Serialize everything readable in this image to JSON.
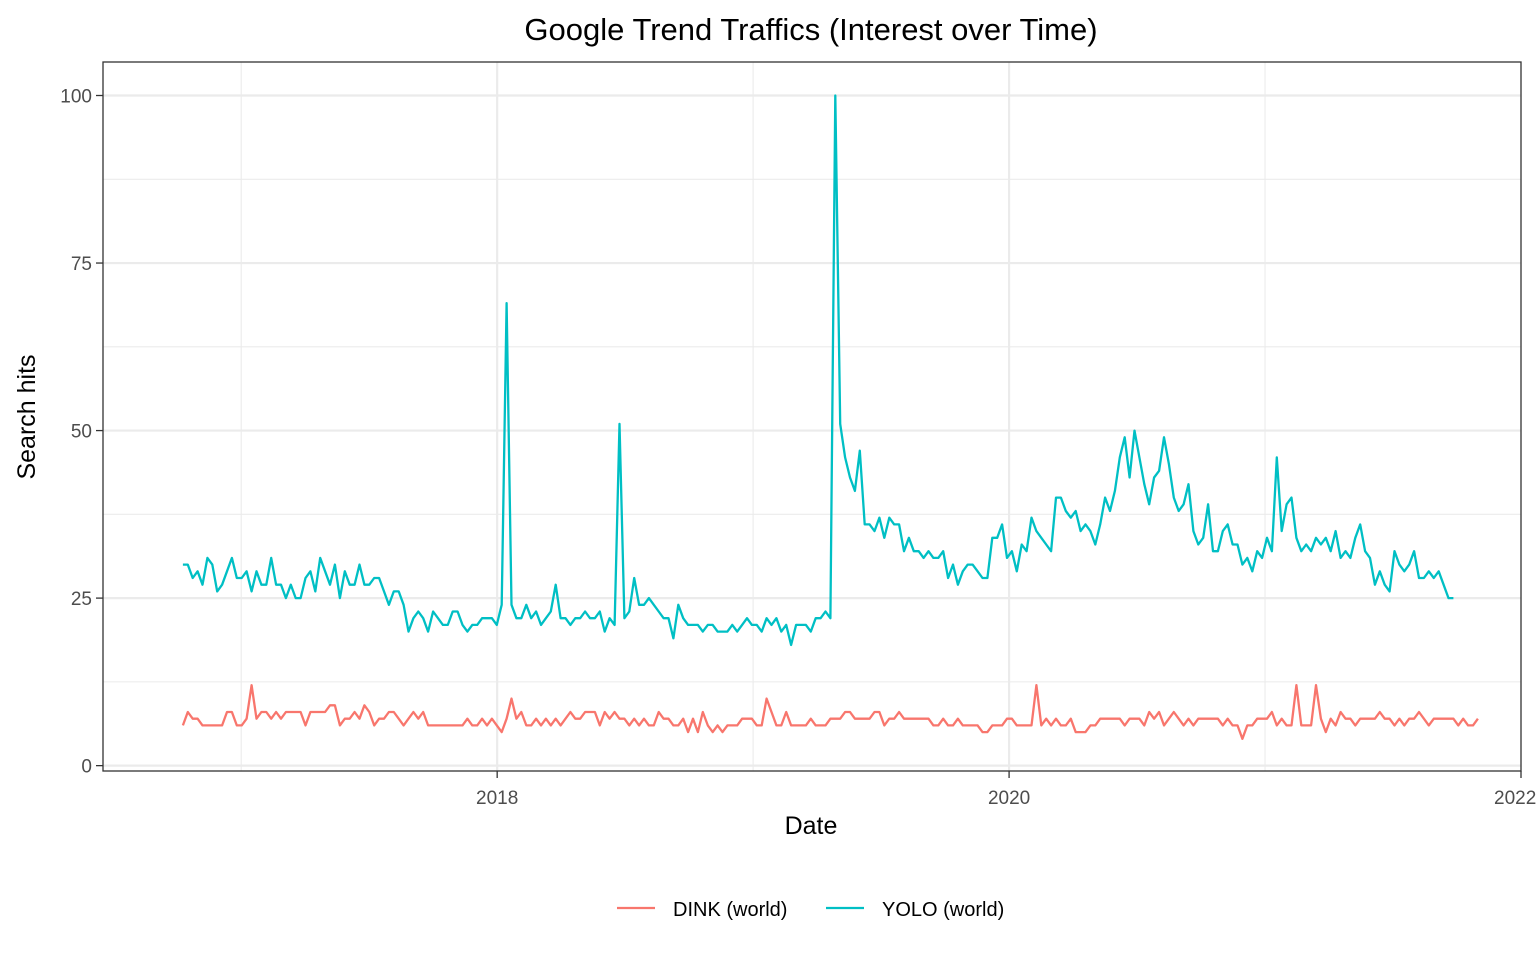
{
  "chart_data": {
    "type": "line",
    "title": "Google Trend Traffics (Interest over Time)",
    "xlabel": "Date",
    "ylabel": "Search hits",
    "x_ticks": [
      "2018",
      "2020",
      "2022"
    ],
    "y_ticks": [
      "0",
      "25",
      "50",
      "75",
      "100"
    ],
    "xlim": [
      2016.46,
      2022.0
    ],
    "ylim": [
      -0.8,
      105
    ],
    "grid": true,
    "legend_position": "bottom",
    "x_start": "2016-10-09",
    "x_step_weeks": 1,
    "series": [
      {
        "name": "DINK (world)",
        "color": "#F8766D",
        "values": [
          6,
          8,
          7,
          7,
          6,
          6,
          6,
          6,
          6,
          8,
          8,
          6,
          6,
          7,
          12,
          7,
          8,
          8,
          7,
          8,
          7,
          8,
          8,
          8,
          8,
          6,
          8,
          8,
          8,
          8,
          9,
          9,
          6,
          7,
          7,
          8,
          7,
          9,
          8,
          6,
          7,
          7,
          8,
          8,
          7,
          6,
          7,
          8,
          7,
          8,
          6,
          6,
          6,
          6,
          6,
          6,
          6,
          6,
          7,
          6,
          6,
          7,
          6,
          7,
          6,
          5,
          7,
          10,
          7,
          8,
          6,
          6,
          7,
          6,
          7,
          6,
          7,
          6,
          7,
          8,
          7,
          7,
          8,
          8,
          8,
          6,
          8,
          7,
          8,
          7,
          7,
          6,
          7,
          6,
          7,
          6,
          6,
          8,
          7,
          7,
          6,
          6,
          7,
          5,
          7,
          5,
          8,
          6,
          5,
          6,
          5,
          6,
          6,
          6,
          7,
          7,
          7,
          6,
          6,
          10,
          8,
          6,
          6,
          8,
          6,
          6,
          6,
          6,
          7,
          6,
          6,
          6,
          7,
          7,
          7,
          8,
          8,
          7,
          7,
          7,
          7,
          8,
          8,
          6,
          7,
          7,
          8,
          7,
          7,
          7,
          7,
          7,
          7,
          6,
          6,
          7,
          6,
          6,
          7,
          6,
          6,
          6,
          6,
          5,
          5,
          6,
          6,
          6,
          7,
          7,
          6,
          6,
          6,
          6,
          12,
          6,
          7,
          6,
          7,
          6,
          6,
          7,
          5,
          5,
          5,
          6,
          6,
          7,
          7,
          7,
          7,
          7,
          6,
          7,
          7,
          7,
          6,
          8,
          7,
          8,
          6,
          7,
          8,
          7,
          6,
          7,
          6,
          7,
          7,
          7,
          7,
          7,
          6,
          7,
          6,
          6,
          4,
          6,
          6,
          7,
          7,
          7,
          8,
          6,
          7,
          6,
          6,
          12,
          6,
          6,
          6,
          12,
          7,
          5,
          7,
          6,
          8,
          7,
          7,
          6,
          7,
          7,
          7,
          7,
          8,
          7,
          7,
          6,
          7,
          6,
          7,
          7,
          8,
          7,
          6,
          7,
          7,
          7,
          7,
          7,
          6,
          7,
          6,
          6,
          7
        ]
      },
      {
        "name": "YOLO (world)",
        "color": "#00BFC4",
        "values": [
          30,
          30,
          28,
          29,
          27,
          31,
          30,
          26,
          27,
          29,
          31,
          28,
          28,
          29,
          26,
          29,
          27,
          27,
          31,
          27,
          27,
          25,
          27,
          25,
          25,
          28,
          29,
          26,
          31,
          29,
          27,
          30,
          25,
          29,
          27,
          27,
          30,
          27,
          27,
          28,
          28,
          26,
          24,
          26,
          26,
          24,
          20,
          22,
          23,
          22,
          20,
          23,
          22,
          21,
          21,
          23,
          23,
          21,
          20,
          21,
          21,
          22,
          22,
          22,
          21,
          24,
          69,
          24,
          22,
          22,
          24,
          22,
          23,
          21,
          22,
          23,
          27,
          22,
          22,
          21,
          22,
          22,
          23,
          22,
          22,
          23,
          20,
          22,
          21,
          51,
          22,
          23,
          28,
          24,
          24,
          25,
          24,
          23,
          22,
          22,
          19,
          24,
          22,
          21,
          21,
          21,
          20,
          21,
          21,
          20,
          20,
          20,
          21,
          20,
          21,
          22,
          21,
          21,
          20,
          22,
          21,
          22,
          20,
          21,
          18,
          21,
          21,
          21,
          20,
          22,
          22,
          23,
          22,
          100,
          51,
          46,
          43,
          41,
          47,
          36,
          36,
          35,
          37,
          34,
          37,
          36,
          36,
          32,
          34,
          32,
          32,
          31,
          32,
          31,
          31,
          32,
          28,
          30,
          27,
          29,
          30,
          30,
          29,
          28,
          28,
          34,
          34,
          36,
          31,
          32,
          29,
          33,
          32,
          37,
          35,
          34,
          33,
          32,
          40,
          40,
          38,
          37,
          38,
          35,
          36,
          35,
          33,
          36,
          40,
          38,
          41,
          46,
          49,
          43,
          50,
          46,
          42,
          39,
          43,
          44,
          49,
          45,
          40,
          38,
          39,
          42,
          35,
          33,
          34,
          39,
          32,
          32,
          35,
          36,
          33,
          33,
          30,
          31,
          29,
          32,
          31,
          34,
          32,
          46,
          35,
          39,
          40,
          34,
          32,
          33,
          32,
          34,
          33,
          34,
          32,
          35,
          31,
          32,
          31,
          34,
          36,
          32,
          31,
          27,
          29,
          27,
          26,
          32,
          30,
          29,
          30,
          32,
          28,
          28,
          29,
          28,
          29,
          27,
          25,
          25
        ]
      }
    ]
  }
}
